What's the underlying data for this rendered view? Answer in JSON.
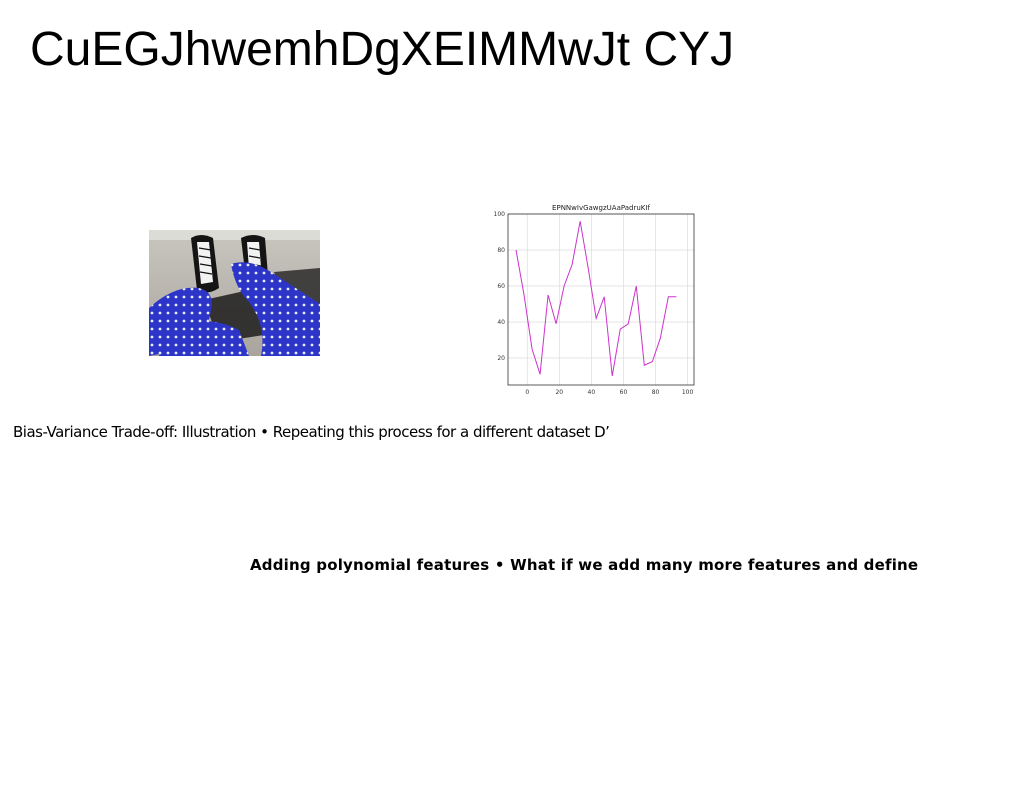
{
  "page": {
    "title": "CuEGJhwemhDgXEIMMwJt CYJ",
    "caption": "Bias-Variance Trade-off: Illustration • Repeating this process for a different dataset D’",
    "subheading": "Adding polynomial features • What if we add many more features and define"
  },
  "photo": {
    "subject": "sneakers-and-blue-polka-dot-pants"
  },
  "chart_data": {
    "type": "line",
    "title": "EPNNwIvGawgzUAaPadruKIf",
    "xlabel": "",
    "ylabel": "",
    "xlim": [
      -12,
      104
    ],
    "ylim": [
      5,
      100
    ],
    "xticks": [
      0,
      20,
      40,
      60,
      80,
      100
    ],
    "yticks": [
      20,
      40,
      60,
      80,
      100
    ],
    "grid": true,
    "color": "#cc33cc",
    "x": [
      -7,
      -2,
      3,
      8,
      13,
      18,
      23,
      28,
      33,
      38,
      43,
      48,
      53,
      58,
      63,
      68,
      73,
      78,
      83,
      88,
      93
    ],
    "y": [
      80,
      55,
      25,
      11,
      55,
      39,
      60,
      72,
      96,
      70,
      42,
      54,
      10,
      36,
      39,
      60,
      16,
      18,
      31,
      54,
      54
    ]
  }
}
